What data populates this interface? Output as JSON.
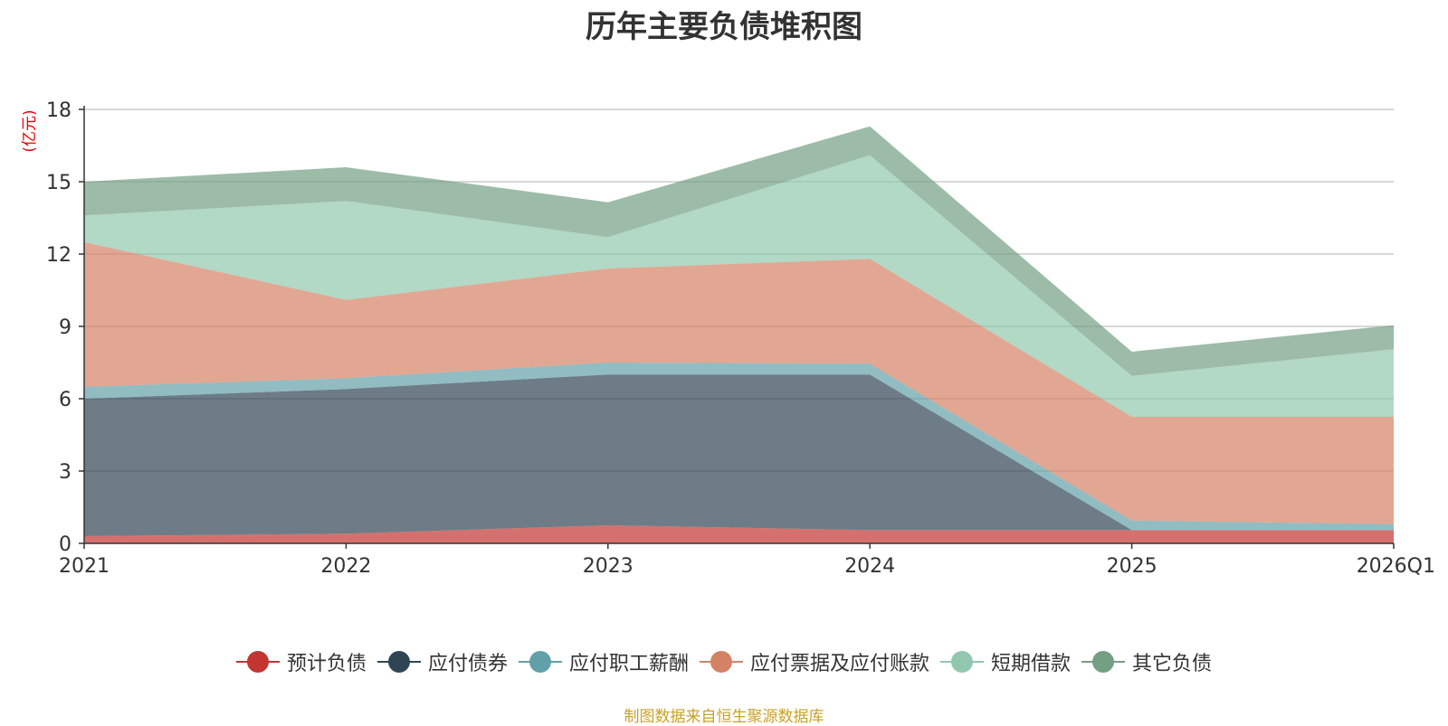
{
  "chart_data": {
    "type": "area",
    "stacked": true,
    "title": "历年主要负债堆积图",
    "ylabel": "(亿元)",
    "xlabel": "",
    "categories": [
      "2021",
      "2022",
      "2023",
      "2024",
      "2025",
      "2026Q1"
    ],
    "ylim": [
      0,
      18
    ],
    "yticks": [
      0,
      3,
      6,
      9,
      12,
      15,
      18
    ],
    "grid": true,
    "legend_position": "bottom",
    "series": [
      {
        "name": "预计负债",
        "color": "#c23531",
        "values": [
          0.3,
          0.4,
          0.75,
          0.55,
          0.55,
          0.55
        ]
      },
      {
        "name": "应付债券",
        "color": "#2f4554",
        "values": [
          5.7,
          6.0,
          6.25,
          6.45,
          0.0,
          0.0
        ]
      },
      {
        "name": "应付职工薪酬",
        "color": "#61a0a8",
        "values": [
          0.5,
          0.45,
          0.5,
          0.45,
          0.4,
          0.25
        ]
      },
      {
        "name": "应付票据及应付账款",
        "color": "#d48265",
        "values": [
          6.0,
          3.25,
          3.9,
          4.35,
          4.3,
          4.45
        ]
      },
      {
        "name": "短期借款",
        "color": "#91c7ae",
        "values": [
          1.1,
          4.1,
          1.3,
          4.3,
          1.7,
          2.8
        ]
      },
      {
        "name": "其它负债",
        "color": "#749f83",
        "values": [
          1.4,
          1.4,
          1.45,
          1.2,
          1.0,
          1.0
        ]
      }
    ]
  },
  "source_note": "制图数据来自恒生聚源数据库"
}
